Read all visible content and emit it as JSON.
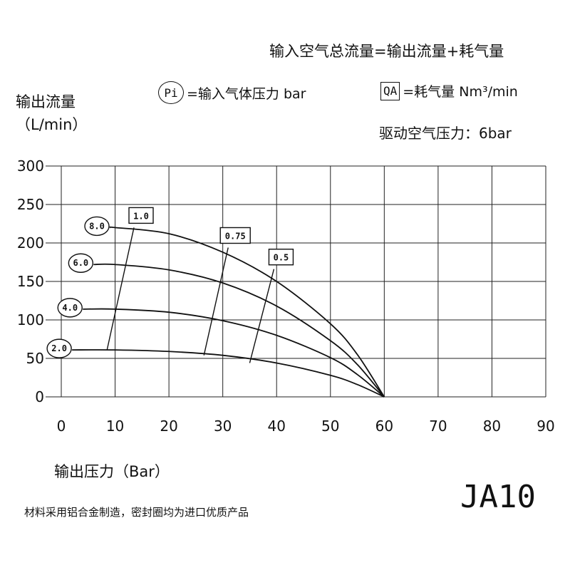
{
  "header": {
    "equation": "输入空气总流量=输出流量+耗气量",
    "pi_badge": "Pi",
    "pi_text": "=输入气体压力 bar",
    "qa_badge": "QA",
    "qa_text": "=耗气量 Nm³/min",
    "drive_pressure": "驱动空气压力：6bar"
  },
  "footer": {
    "note": "材料采用铝合金制造，密封圈均为进口优质产品",
    "model": "JA10"
  },
  "chart_data": {
    "type": "line",
    "ylabel_line1": "输出流量",
    "ylabel_line2": "（L/min）",
    "xlabel": "输出压力（Bar）",
    "xlim": [
      0,
      90
    ],
    "ylim": [
      0,
      300
    ],
    "xticks": [
      0,
      10,
      20,
      30,
      40,
      50,
      60,
      70,
      80,
      90
    ],
    "yticks": [
      0,
      50,
      100,
      150,
      200,
      250,
      300
    ],
    "grid": true,
    "series": [
      {
        "name": "8.0",
        "x": [
          9,
          10,
          20,
          30,
          40,
          50,
          55,
          60
        ],
        "y": [
          220,
          220,
          212,
          188,
          150,
          95,
          55,
          0
        ]
      },
      {
        "name": "6.0",
        "x": [
          6,
          10,
          20,
          30,
          40,
          50,
          55,
          60
        ],
        "y": [
          172,
          172,
          165,
          148,
          118,
          73,
          42,
          0
        ]
      },
      {
        "name": "4.0",
        "x": [
          4,
          10,
          20,
          30,
          40,
          50,
          55,
          60
        ],
        "y": [
          114,
          114,
          110,
          99,
          80,
          51,
          29,
          0
        ]
      },
      {
        "name": "2.0",
        "x": [
          2,
          10,
          20,
          30,
          40,
          50,
          55,
          60
        ],
        "y": [
          61,
          61,
          59,
          54,
          44,
          28,
          16,
          0
        ]
      }
    ],
    "consumption_lines": [
      {
        "label": "1.0",
        "points": [
          [
            8.5,
            61
          ],
          [
            13.5,
            220
          ]
        ]
      },
      {
        "label": "0.75",
        "points": [
          [
            26.5,
            54
          ],
          [
            31.0,
            194
          ]
        ]
      },
      {
        "label": "0.5",
        "points": [
          [
            35.0,
            44
          ],
          [
            39.5,
            166
          ]
        ]
      }
    ]
  }
}
